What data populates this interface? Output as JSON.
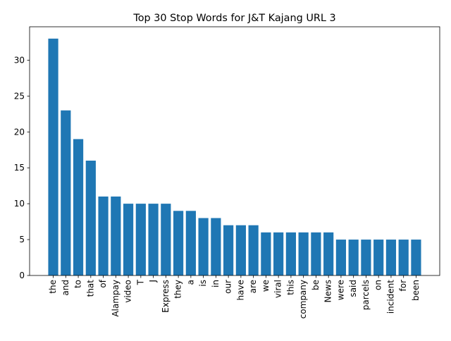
{
  "chart_data": {
    "type": "bar",
    "title": "Top 30 Stop Words for J&T Kajang URL 3",
    "xlabel": "",
    "ylabel": "",
    "categories": [
      "the",
      "and",
      "to",
      "that",
      "of",
      "Alampay",
      "video",
      "T",
      "J",
      "Express",
      "they",
      "a",
      "is",
      "in",
      "our",
      "have",
      "are",
      "we",
      "viral",
      "this",
      "company",
      "be",
      "News",
      "were",
      "said",
      "parcels",
      "on",
      "incident",
      "for",
      "been"
    ],
    "values": [
      33,
      23,
      19,
      16,
      11,
      11,
      10,
      10,
      10,
      10,
      9,
      9,
      8,
      8,
      7,
      7,
      7,
      6,
      6,
      6,
      6,
      6,
      6,
      5,
      5,
      5,
      5,
      5,
      5,
      5
    ],
    "yticks": [
      0,
      5,
      10,
      15,
      20,
      25,
      30
    ],
    "ylim": [
      0,
      34.65
    ],
    "grid": false,
    "bar_color": "#1f77b4"
  }
}
